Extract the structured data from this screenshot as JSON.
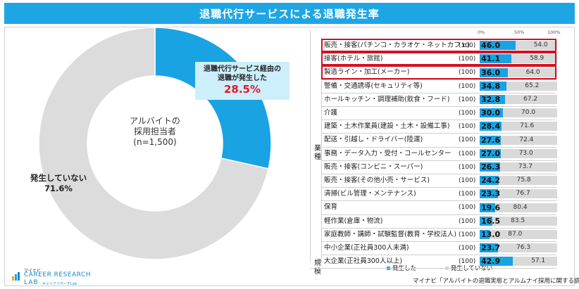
{
  "title": "退職代行サービスによる退職発生率",
  "donut": {
    "center_label": "アルバイトの\n採用担当者",
    "n_label": "(n=1,500)",
    "happened_label": "退職代行サービス経由の\n退職が発生した",
    "happened_value": "28.5%",
    "not_happened_label": "発生していない",
    "not_happened_value": "71.6%",
    "happened_pct": 28.5,
    "colors": {
      "happened": "#1aa3e2",
      "not_happened": "#dcdcdc"
    }
  },
  "chart_data": {
    "type": "bar",
    "stacked": true,
    "orientation": "horizontal",
    "xlim": [
      0,
      100
    ],
    "ticks": [
      "0%",
      "50%",
      "100%"
    ],
    "groups": [
      {
        "name": "業種",
        "start": 0,
        "end": 16
      },
      {
        "name": "規模",
        "start": 17,
        "end": 18
      }
    ],
    "categories": [
      "販売・接客(パチンコ・カラオケ・ネットカフェ)",
      "接客(ホテル・旅館)",
      "製造ライン・加工(メーカー)",
      "警備・交通誘導(セキュリティ等)",
      "ホールキッチン・調理補助(飲食・フード)",
      "介護",
      "建築・土木作業員(建設・土木・設備工事)",
      "配送・引越し・ドライバー(陸運)",
      "事務・データ入力・受付・コールセンター",
      "販売・接客(コンビニ・スーパー)",
      "販売・接客(その他小売・サービス)",
      "清掃(ビル管理・メンテナンス)",
      "保育",
      "軽作業(倉庫・物流)",
      "家庭教師・講師・試験監督(教育・学校法人)",
      "中小企業(正社員300人未満)",
      "大企業(正社員300人以上)"
    ],
    "n": [
      "(100)",
      "(100)",
      "(100)",
      "(100)",
      "(100)",
      "(100)",
      "(100)",
      "(100)",
      "(100)",
      "(100)",
      "(100)",
      "(100)",
      "(100)",
      "(100)",
      "(100)",
      "(100)",
      "(100)"
    ],
    "series": [
      {
        "name": "発生した",
        "color": "#1aa3e2",
        "values": [
          46.0,
          41.1,
          36.0,
          34.8,
          32.8,
          30.0,
          28.4,
          27.6,
          27.0,
          26.3,
          24.2,
          23.3,
          19.6,
          16.5,
          13.0,
          23.7,
          42.9
        ]
      },
      {
        "name": "発生していない",
        "color": "#d9d9d9",
        "values": [
          54.0,
          58.9,
          64.0,
          65.2,
          67.2,
          70.0,
          71.6,
          72.4,
          73.0,
          73.7,
          75.8,
          76.7,
          80.4,
          83.5,
          87.0,
          76.3,
          57.1
        ]
      }
    ],
    "highlighted": [
      0,
      1,
      2
    ],
    "legend": [
      "発生した",
      "発生していない"
    ]
  },
  "source": "マイナビ「アルバイトの退職実態とアルムナイ採用に関する調査」",
  "logo": {
    "line1": "マイナビ",
    "line2": "CAREER RESEARCH",
    "line3": "LAB",
    "line4": "キャリアリサーチLab"
  }
}
